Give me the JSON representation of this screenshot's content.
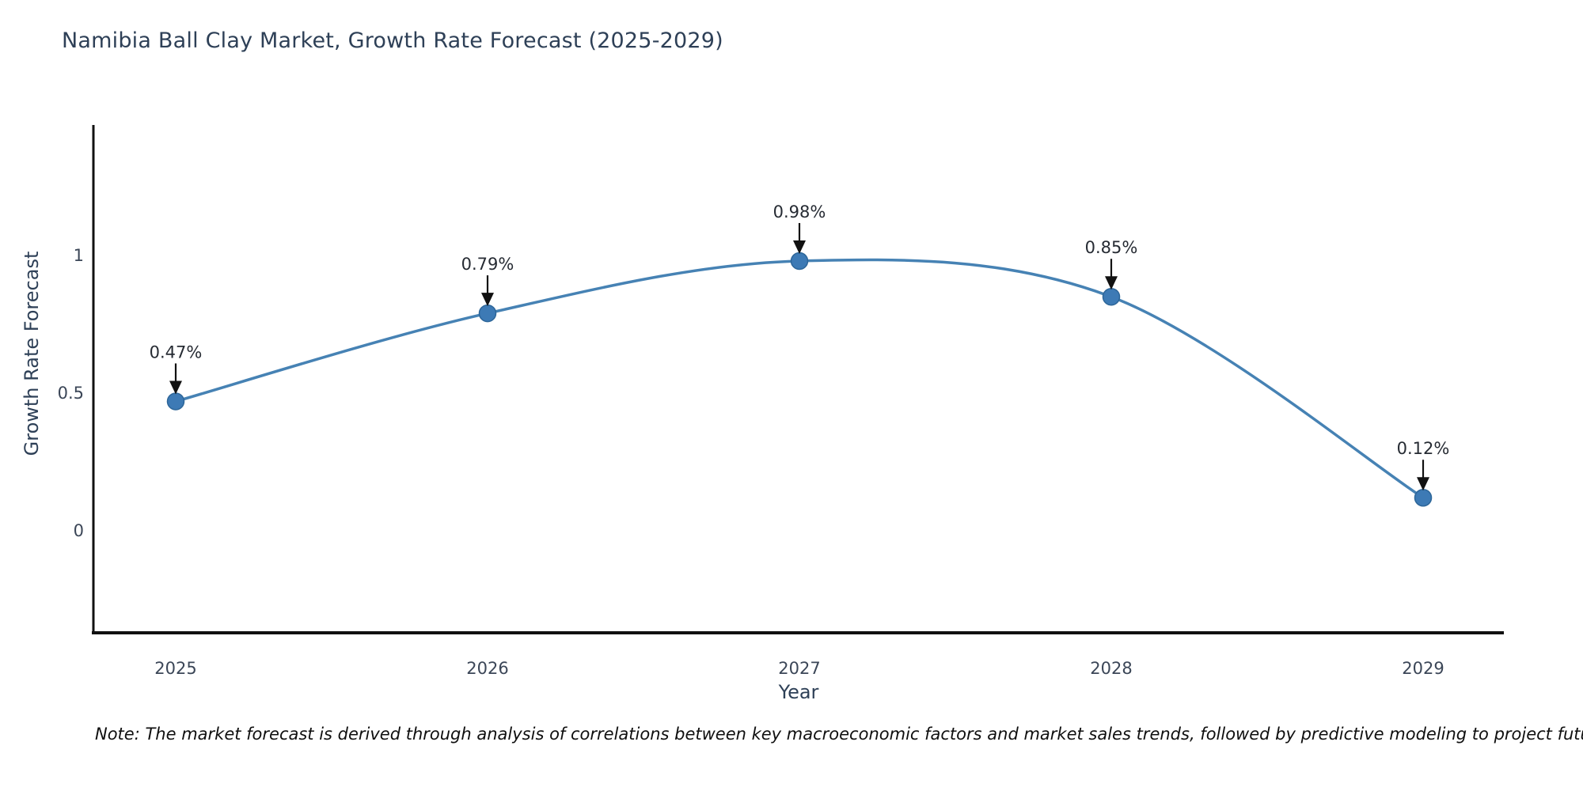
{
  "title": "Namibia Ball Clay Market, Growth Rate Forecast (2025-2029)",
  "note": "Note: The market forecast is derived through analysis of correlations between key macroeconomic factors and market sales trends, followed by predictive modeling to project future sales",
  "chart_data": {
    "type": "line",
    "title": "Namibia Ball Clay Market, Growth Rate Forecast (2025-2029)",
    "xlabel": "Year",
    "ylabel": "Growth Rate Forecast",
    "categories": [
      "2025",
      "2026",
      "2027",
      "2028",
      "2029"
    ],
    "values": [
      0.47,
      0.79,
      0.98,
      0.85,
      0.12
    ],
    "point_labels": [
      "0.47%",
      "0.79%",
      "0.98%",
      "0.85%",
      "0.12%"
    ],
    "yticks": [
      "0",
      "0.5",
      "1"
    ],
    "ytick_values": [
      0,
      0.5,
      1
    ],
    "ylim": [
      -0.37,
      1.47
    ],
    "grid": false,
    "legend": "none",
    "smooth": true,
    "colors": {
      "line": "#4682b4",
      "marker_fill": "#3d7ab5",
      "marker_edge": "#2d6699",
      "spine": "#111111",
      "arrow": "#111111",
      "title_text": "#2e4057",
      "tick_text": "#3b4657",
      "annotation_text": "#262b33"
    }
  }
}
